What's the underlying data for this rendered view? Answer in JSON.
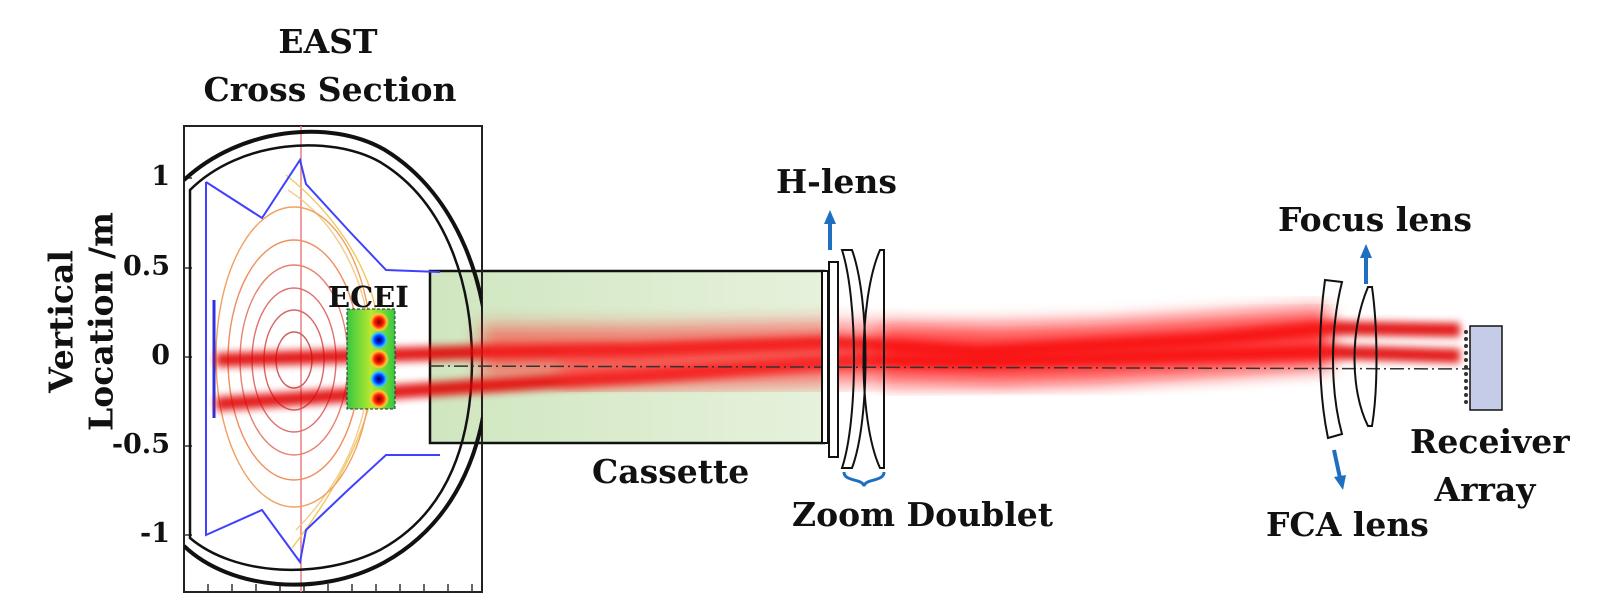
{
  "title": {
    "line1": "EAST",
    "line2": "Cross Section"
  },
  "y_axis": {
    "label_line1": "Vertical",
    "label_line2": "Location /m",
    "ticks": [
      "1",
      "0.5",
      "0",
      "-0.5",
      "-1"
    ]
  },
  "labels": {
    "ecei": "ECEI",
    "cassette": "Cassette",
    "h_lens": "H-lens",
    "zoom_doublet": "Zoom Doublet",
    "focus_lens": "Focus lens",
    "fca_lens": "FCA lens",
    "receiver_line1": "Receiver",
    "receiver_line2": "Array"
  },
  "colors": {
    "beam": "#e00000",
    "cassette_fill": "#d8ecc8",
    "arrow": "#1f6fc0",
    "wall": "#4040ff",
    "receiver": "#c4cce8"
  }
}
